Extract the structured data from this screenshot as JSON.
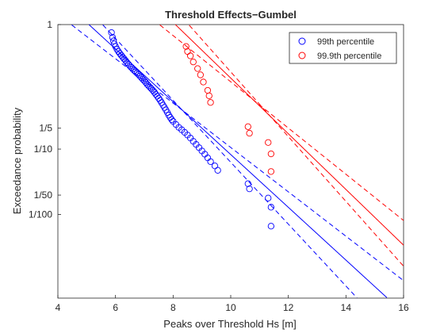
{
  "chart_data": {
    "type": "scatter",
    "title": "Threshold Effects−Gumbel",
    "xlabel": "Peaks over Threshold Hs [m]",
    "ylabel": "Exceedance probability",
    "xlim": [
      4,
      16
    ],
    "ylim": [
      0.0005,
      1
    ],
    "yscale": "gumbel",
    "xticks": [
      4,
      6,
      8,
      10,
      12,
      14,
      16
    ],
    "yticks": [
      {
        "value": 1,
        "label": "1"
      },
      {
        "value": 0.2,
        "label": "1/5"
      },
      {
        "value": 0.1,
        "label": "1/10"
      },
      {
        "value": 0.02,
        "label": "1/50"
      },
      {
        "value": 0.01,
        "label": "1/100"
      }
    ],
    "legend_position": "top-right",
    "colors": {
      "p99": "#0000ff",
      "p999": "#ff0000",
      "axis": "#262626"
    },
    "series": [
      {
        "name": "99th percentile",
        "color": "#0000ff",
        "points": [
          [
            5.86,
            0.999
          ],
          [
            5.9,
            0.997
          ],
          [
            5.93,
            0.994
          ],
          [
            5.96,
            0.99
          ],
          [
            6.0,
            0.985
          ],
          [
            6.05,
            0.978
          ],
          [
            6.1,
            0.97
          ],
          [
            6.15,
            0.962
          ],
          [
            6.2,
            0.953
          ],
          [
            6.25,
            0.943
          ],
          [
            6.3,
            0.932
          ],
          [
            6.35,
            0.92
          ],
          [
            6.4,
            0.905
          ],
          [
            6.45,
            0.892
          ],
          [
            6.5,
            0.876
          ],
          [
            6.55,
            0.862
          ],
          [
            6.6,
            0.845
          ],
          [
            6.65,
            0.83
          ],
          [
            6.7,
            0.815
          ],
          [
            6.75,
            0.8
          ],
          [
            6.8,
            0.783
          ],
          [
            6.85,
            0.765
          ],
          [
            6.9,
            0.745
          ],
          [
            6.95,
            0.725
          ],
          [
            7.0,
            0.705
          ],
          [
            7.05,
            0.685
          ],
          [
            7.1,
            0.66
          ],
          [
            7.15,
            0.64
          ],
          [
            7.2,
            0.62
          ],
          [
            7.25,
            0.6
          ],
          [
            7.3,
            0.578
          ],
          [
            7.35,
            0.555
          ],
          [
            7.4,
            0.53
          ],
          [
            7.45,
            0.505
          ],
          [
            7.5,
            0.48
          ],
          [
            7.55,
            0.455
          ],
          [
            7.6,
            0.428
          ],
          [
            7.65,
            0.4
          ],
          [
            7.7,
            0.375
          ],
          [
            7.75,
            0.35
          ],
          [
            7.8,
            0.325
          ],
          [
            7.85,
            0.3
          ],
          [
            7.9,
            0.28
          ],
          [
            7.95,
            0.262
          ],
          [
            8.0,
            0.248
          ],
          [
            8.1,
            0.225
          ],
          [
            8.2,
            0.205
          ],
          [
            8.3,
            0.19
          ],
          [
            8.4,
            0.175
          ],
          [
            8.5,
            0.16
          ],
          [
            8.6,
            0.145
          ],
          [
            8.7,
            0.13
          ],
          [
            8.8,
            0.117
          ],
          [
            8.9,
            0.105
          ],
          [
            9.0,
            0.094
          ],
          [
            9.1,
            0.084
          ],
          [
            9.2,
            0.074
          ],
          [
            9.3,
            0.065
          ],
          [
            9.45,
            0.056
          ],
          [
            9.55,
            0.048
          ],
          [
            10.6,
            0.03
          ],
          [
            10.65,
            0.025
          ],
          [
            11.3,
            0.018
          ],
          [
            11.4,
            0.013
          ],
          [
            11.4,
            0.0066
          ]
        ]
      },
      {
        "name": "99.9th percentile",
        "color": "#ff0000",
        "points": [
          [
            8.45,
            0.985
          ],
          [
            8.5,
            0.97
          ],
          [
            8.6,
            0.95
          ],
          [
            8.7,
            0.91
          ],
          [
            8.85,
            0.85
          ],
          [
            8.95,
            0.78
          ],
          [
            9.05,
            0.69
          ],
          [
            9.2,
            0.58
          ],
          [
            9.25,
            0.51
          ],
          [
            9.3,
            0.43
          ],
          [
            10.6,
            0.21
          ],
          [
            10.65,
            0.17
          ],
          [
            11.3,
            0.125
          ],
          [
            11.4,
            0.085
          ],
          [
            11.4,
            0.046
          ]
        ]
      }
    ],
    "fits": [
      {
        "color": "#0000ff",
        "dash": false,
        "a": 1.055,
        "b": 7.42
      },
      {
        "color": "#0000ff",
        "dash": true,
        "a": 0.9,
        "b": 7.55
      },
      {
        "color": "#0000ff",
        "dash": true,
        "a": 1.255,
        "b": 7.25
      },
      {
        "color": "#ff0000",
        "dash": false,
        "a": 1.0,
        "b": 10.3
      },
      {
        "color": "#ff0000",
        "dash": true,
        "a": 1.205,
        "b": 10.2
      },
      {
        "color": "#ff0000",
        "dash": true,
        "a": 0.86,
        "b": 10.45
      }
    ]
  }
}
